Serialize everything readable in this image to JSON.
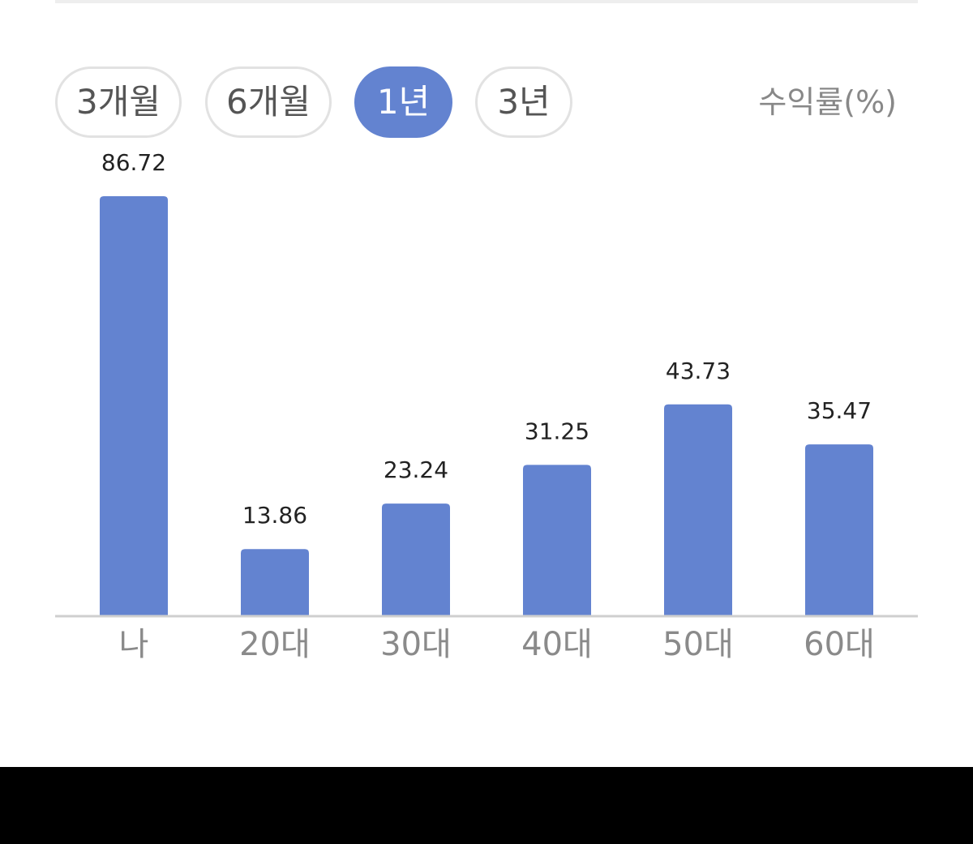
{
  "tabs": [
    {
      "label": "3개월",
      "active": false
    },
    {
      "label": "6개월",
      "active": false
    },
    {
      "label": "1년",
      "active": true
    },
    {
      "label": "3년",
      "active": false
    }
  ],
  "unit_label": "수익률(%)",
  "colors": {
    "bar": "#6383d0",
    "axis": "#cfcfcf",
    "value_label": "#222222",
    "category_label": "#8a8a8a"
  },
  "chart_data": {
    "type": "bar",
    "categories": [
      "나",
      "20대",
      "30대",
      "40대",
      "50대",
      "60대"
    ],
    "values": [
      86.72,
      13.86,
      23.24,
      31.25,
      43.73,
      35.47
    ],
    "data_labels": [
      "86.72",
      "13.86",
      "23.24",
      "31.25",
      "43.73",
      "35.47"
    ],
    "title": "",
    "xlabel": "",
    "ylabel": "수익률(%)",
    "ylim": [
      0,
      86.72
    ],
    "grid": false,
    "legend": "none"
  }
}
